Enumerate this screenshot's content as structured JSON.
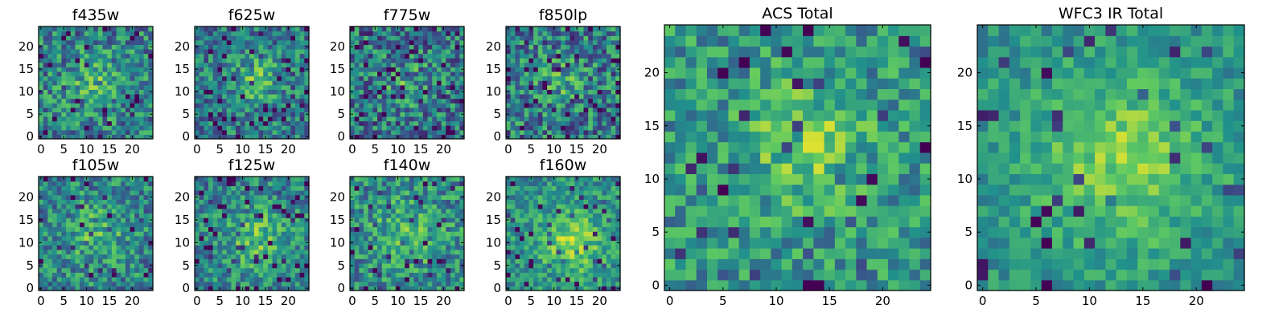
{
  "figure": {
    "colormap": [
      "#440154",
      "#3b528b",
      "#21918c",
      "#5ec962",
      "#fde725"
    ],
    "grid_size": 25
  },
  "chart_data": [
    {
      "type": "heatmap",
      "title": "f435w",
      "xticks": [
        0,
        5,
        10,
        15,
        20
      ],
      "yticks": [
        0,
        5,
        10,
        15,
        20
      ],
      "xlim": [
        -0.5,
        24.5
      ],
      "ylim": [
        -0.5,
        24.5
      ],
      "center": [
        12,
        12
      ],
      "sigma": 4,
      "amp": 0.2,
      "noise": 0.55,
      "base": 0.45,
      "darkness": 0.06,
      "seed": 11
    },
    {
      "type": "heatmap",
      "title": "f625w",
      "xticks": [
        0,
        5,
        10,
        15,
        20
      ],
      "yticks": [
        0,
        5,
        10,
        15,
        20
      ],
      "xlim": [
        -0.5,
        24.5
      ],
      "ylim": [
        -0.5,
        24.5
      ],
      "center": [
        13,
        13
      ],
      "sigma": 4,
      "amp": 0.25,
      "noise": 0.5,
      "base": 0.42,
      "darkness": 0.07,
      "seed": 23
    },
    {
      "type": "heatmap",
      "title": "f775w",
      "xticks": [
        0,
        5,
        10,
        15,
        20
      ],
      "yticks": [
        0,
        5,
        10,
        15,
        20
      ],
      "xlim": [
        -0.5,
        24.5
      ],
      "ylim": [
        -0.5,
        24.5
      ],
      "center": [
        12,
        12
      ],
      "sigma": 4,
      "amp": 0.15,
      "noise": 0.6,
      "base": 0.4,
      "darkness": 0.1,
      "seed": 37
    },
    {
      "type": "heatmap",
      "title": "f850lp",
      "xticks": [
        0,
        5,
        10,
        15,
        20
      ],
      "yticks": [
        0,
        5,
        10,
        15,
        20
      ],
      "xlim": [
        -0.5,
        24.5
      ],
      "ylim": [
        -0.5,
        24.5
      ],
      "center": [
        12,
        12
      ],
      "sigma": 4,
      "amp": 0.15,
      "noise": 0.6,
      "base": 0.42,
      "darkness": 0.1,
      "seed": 41
    },
    {
      "type": "heatmap",
      "title": "f105w",
      "xticks": [
        0,
        5,
        10,
        15,
        20
      ],
      "yticks": [
        0,
        5,
        10,
        15,
        20
      ],
      "xlim": [
        -0.5,
        24.5
      ],
      "ylim": [
        -0.5,
        24.5
      ],
      "center": [
        12,
        12
      ],
      "sigma": 5,
      "amp": 0.2,
      "noise": 0.5,
      "base": 0.45,
      "darkness": 0.08,
      "seed": 53
    },
    {
      "type": "heatmap",
      "title": "f125w",
      "xticks": [
        0,
        5,
        10,
        15,
        20
      ],
      "yticks": [
        0,
        5,
        10,
        15,
        20
      ],
      "xlim": [
        -0.5,
        24.5
      ],
      "ylim": [
        -0.5,
        24.5
      ],
      "center": [
        13,
        11
      ],
      "sigma": 5,
      "amp": 0.25,
      "noise": 0.45,
      "base": 0.45,
      "darkness": 0.07,
      "seed": 67
    },
    {
      "type": "heatmap",
      "title": "f140w",
      "xticks": [
        0,
        5,
        10,
        15,
        20
      ],
      "yticks": [
        0,
        5,
        10,
        15,
        20
      ],
      "xlim": [
        -0.5,
        24.5
      ],
      "ylim": [
        -0.5,
        24.5
      ],
      "center": [
        12,
        12
      ],
      "sigma": 5,
      "amp": 0.2,
      "noise": 0.5,
      "base": 0.48,
      "darkness": 0.08,
      "seed": 79
    },
    {
      "type": "heatmap",
      "title": "f160w",
      "xticks": [
        0,
        5,
        10,
        15,
        20
      ],
      "yticks": [
        0,
        5,
        10,
        15,
        20
      ],
      "xlim": [
        -0.5,
        24.5
      ],
      "ylim": [
        -0.5,
        24.5
      ],
      "center": [
        14,
        10
      ],
      "sigma": 5,
      "amp": 0.3,
      "noise": 0.4,
      "base": 0.5,
      "darkness": 0.07,
      "seed": 83
    },
    {
      "type": "heatmap",
      "title": "ACS Total",
      "xticks": [
        0,
        5,
        10,
        15,
        20
      ],
      "yticks": [
        0,
        5,
        10,
        15,
        20
      ],
      "xlim": [
        -0.5,
        24.5
      ],
      "ylim": [
        -0.5,
        24.5
      ],
      "center": [
        13,
        13
      ],
      "sigma": 4,
      "amp": 0.25,
      "noise": 0.45,
      "base": 0.52,
      "darkness": 0.06,
      "seed": 97
    },
    {
      "type": "heatmap",
      "title": "WFC3 IR Total",
      "xticks": [
        0,
        5,
        10,
        15,
        20
      ],
      "yticks": [
        0,
        5,
        10,
        15,
        20
      ],
      "xlim": [
        -0.5,
        24.5
      ],
      "ylim": [
        -0.5,
        24.5
      ],
      "center": [
        13,
        12
      ],
      "sigma": 6,
      "amp": 0.3,
      "noise": 0.3,
      "base": 0.5,
      "darkness": 0.05,
      "seed": 101
    }
  ]
}
